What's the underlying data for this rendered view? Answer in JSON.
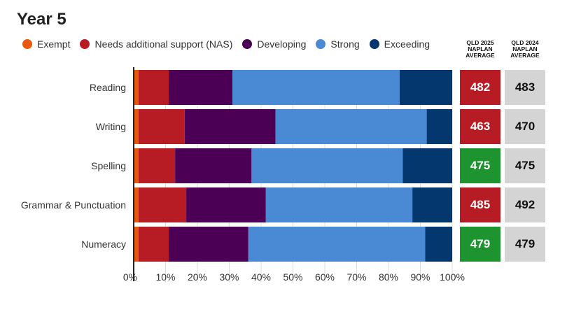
{
  "title": "Year 5",
  "legend": [
    {
      "label": "Exempt",
      "color": "#e8580c"
    },
    {
      "label": "Needs additional support (NAS)",
      "color": "#b71c24"
    },
    {
      "label": "Developing",
      "color": "#4b0055"
    },
    {
      "label": "Strong",
      "color": "#4a8ad4"
    },
    {
      "label": "Exceeding",
      "color": "#03376e"
    }
  ],
  "columns": {
    "qld2025": "QLD 2025 NAPLAN AVERAGE",
    "qld2024": "QLD 2024 NAPLAN AVERAGE"
  },
  "colors": {
    "below_avg": "#b71c24",
    "at_or_above_avg": "#1e9430",
    "prior_year_bg": "#d4d4d4"
  },
  "chart_data": {
    "type": "bar",
    "orientation": "horizontal",
    "stacked": true,
    "title": "Year 5",
    "categories": [
      "Reading",
      "Writing",
      "Spelling",
      "Grammar & Punctuation",
      "Numeracy"
    ],
    "series": [
      {
        "name": "Exempt",
        "values": [
          1.5,
          1.5,
          1.5,
          1.5,
          1.5
        ]
      },
      {
        "name": "Needs additional support (NAS)",
        "values": [
          9.5,
          14.5,
          11.5,
          15.0,
          9.5
        ]
      },
      {
        "name": "Developing",
        "values": [
          20.0,
          28.5,
          24.0,
          25.0,
          25.0
        ]
      },
      {
        "name": "Strong",
        "values": [
          52.5,
          47.5,
          47.5,
          46.0,
          55.5
        ]
      },
      {
        "name": "Exceeding",
        "values": [
          16.5,
          8.0,
          15.5,
          12.5,
          8.5
        ]
      }
    ],
    "xlim": [
      0,
      100
    ],
    "ticks": [
      "0%",
      "10%",
      "20%",
      "30%",
      "40%",
      "50%",
      "60%",
      "70%",
      "80%",
      "90%",
      "100%"
    ],
    "grid": true,
    "legend_position": "top",
    "averages": [
      {
        "qld2025": "482",
        "qld2024": "483",
        "status_2025": "below"
      },
      {
        "qld2025": "463",
        "qld2024": "470",
        "status_2025": "below"
      },
      {
        "qld2025": "475",
        "qld2024": "475",
        "status_2025": "at_or_above"
      },
      {
        "qld2025": "485",
        "qld2024": "492",
        "status_2025": "below"
      },
      {
        "qld2025": "479",
        "qld2024": "479",
        "status_2025": "at_or_above"
      }
    ]
  }
}
